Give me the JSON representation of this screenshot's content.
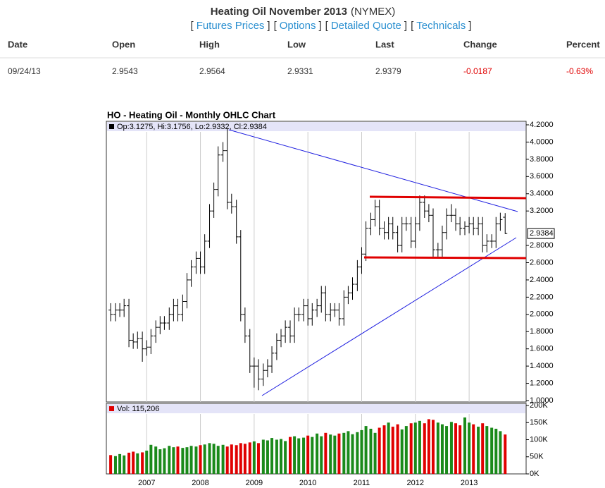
{
  "quote": {
    "title": "Heating Oil November 2013",
    "exchange": "(NYMEX)",
    "bracket_open": "[",
    "bracket_close": "]",
    "links": [
      "Futures Prices",
      "Options",
      "Detailed Quote",
      "Technicals"
    ],
    "headers": [
      "Date",
      "Open",
      "High",
      "Low",
      "Last",
      "Change",
      "Percent"
    ],
    "row": [
      "09/24/13",
      "2.9543",
      "2.9564",
      "2.9331",
      "2.9379",
      "-0.0187",
      "-0.63%"
    ]
  },
  "chart_data": {
    "type": "ohlc",
    "title": "HO - Heating Oil - Monthly OHLC Chart",
    "legend_text": "Op:3.1275, Hi:3.1756, Lo:2.9332, Cl:2.9384",
    "last_label": "2.9384",
    "color": "#000000",
    "x": [
      2006.33,
      2006.42,
      2006.5,
      2006.58,
      2006.67,
      2006.75,
      2006.83,
      2006.92,
      2007,
      2007.08,
      2007.17,
      2007.25,
      2007.33,
      2007.42,
      2007.5,
      2007.58,
      2007.67,
      2007.75,
      2007.83,
      2007.92,
      2008,
      2008.08,
      2008.17,
      2008.25,
      2008.33,
      2008.42,
      2008.5,
      2008.58,
      2008.67,
      2008.75,
      2008.83,
      2008.92,
      2009,
      2009.08,
      2009.17,
      2009.25,
      2009.33,
      2009.42,
      2009.5,
      2009.58,
      2009.67,
      2009.75,
      2009.83,
      2009.92,
      2010,
      2010.08,
      2010.17,
      2010.25,
      2010.33,
      2010.42,
      2010.5,
      2010.58,
      2010.67,
      2010.75,
      2010.83,
      2010.92,
      2011,
      2011.08,
      2011.17,
      2011.25,
      2011.33,
      2011.42,
      2011.5,
      2011.58,
      2011.67,
      2011.75,
      2011.83,
      2011.92,
      2012,
      2012.08,
      2012.17,
      2012.25,
      2012.33,
      2012.42,
      2012.5,
      2012.58,
      2012.67,
      2012.75,
      2012.83,
      2012.92,
      2013,
      2013.08,
      2013.17,
      2013.25,
      2013.33,
      2013.42,
      2013.5,
      2013.58,
      2013.67
    ],
    "open": [
      2.05,
      2.0,
      2.05,
      2.05,
      2.1,
      1.7,
      1.68,
      1.72,
      1.6,
      1.62,
      1.75,
      1.85,
      1.9,
      1.9,
      2.0,
      2.1,
      2.0,
      2.15,
      2.4,
      2.55,
      2.65,
      2.55,
      2.85,
      3.2,
      3.45,
      3.85,
      3.9,
      3.3,
      3.25,
      2.9,
      2.0,
      1.75,
      1.4,
      1.4,
      1.25,
      1.35,
      1.4,
      1.55,
      1.7,
      1.75,
      1.85,
      1.75,
      2.0,
      2.0,
      2.1,
      1.95,
      2.05,
      2.1,
      2.25,
      2.0,
      2.05,
      2.05,
      1.95,
      2.2,
      2.25,
      2.35,
      2.55,
      2.7,
      3.0,
      3.1,
      3.25,
      3.0,
      2.95,
      3.05,
      2.95,
      2.8,
      3.05,
      3.05,
      2.85,
      3.05,
      3.3,
      3.2,
      3.15,
      2.75,
      2.75,
      2.95,
      3.15,
      3.15,
      3.05,
      3.0,
      3.02,
      3.05,
      3.0,
      3.05,
      2.8,
      2.85,
      2.85,
      3.05,
      3.1275
    ],
    "high": [
      2.13,
      2.13,
      2.13,
      2.18,
      2.18,
      1.78,
      1.8,
      1.8,
      1.7,
      1.83,
      1.93,
      1.98,
      1.98,
      2.08,
      2.18,
      2.18,
      2.23,
      2.48,
      2.63,
      2.73,
      2.73,
      2.93,
      3.28,
      3.53,
      3.95,
      4.0,
      4.16,
      3.4,
      3.33,
      2.98,
      2.08,
      1.83,
      1.5,
      1.48,
      1.43,
      1.48,
      1.63,
      1.78,
      1.83,
      1.93,
      1.93,
      2.08,
      2.08,
      2.18,
      2.18,
      2.13,
      2.18,
      2.33,
      2.33,
      2.13,
      2.13,
      2.13,
      2.28,
      2.33,
      2.43,
      2.63,
      2.78,
      3.08,
      3.18,
      3.33,
      3.33,
      3.08,
      3.13,
      3.13,
      3.03,
      3.13,
      3.13,
      3.13,
      3.13,
      3.38,
      3.38,
      3.28,
      3.23,
      2.83,
      3.03,
      3.23,
      3.28,
      3.23,
      3.13,
      3.08,
      3.13,
      3.13,
      3.13,
      3.13,
      2.93,
      2.93,
      3.13,
      3.18,
      3.1756
    ],
    "low": [
      1.92,
      1.92,
      1.97,
      1.97,
      1.62,
      1.6,
      1.6,
      1.45,
      1.52,
      1.54,
      1.67,
      1.77,
      1.82,
      1.82,
      1.92,
      1.92,
      1.92,
      2.07,
      2.32,
      2.47,
      2.47,
      2.47,
      2.77,
      3.12,
      3.37,
      3.77,
      3.22,
      3.17,
      2.82,
      1.92,
      1.67,
      1.32,
      1.15,
      1.12,
      1.17,
      1.27,
      1.32,
      1.47,
      1.62,
      1.67,
      1.67,
      1.67,
      1.92,
      1.92,
      1.87,
      1.87,
      1.97,
      2.02,
      1.92,
      1.92,
      1.97,
      1.87,
      1.87,
      2.12,
      2.17,
      2.27,
      2.47,
      2.62,
      2.92,
      3.02,
      2.92,
      2.87,
      2.87,
      2.87,
      2.72,
      2.72,
      2.97,
      2.77,
      2.77,
      2.97,
      3.12,
      3.07,
      2.67,
      2.67,
      2.67,
      2.87,
      3.07,
      2.97,
      2.92,
      2.92,
      2.94,
      2.92,
      2.92,
      2.72,
      2.72,
      2.77,
      2.77,
      2.97,
      2.9332
    ],
    "close": [
      2.0,
      2.05,
      2.05,
      2.1,
      1.7,
      1.68,
      1.72,
      1.6,
      1.62,
      1.75,
      1.85,
      1.9,
      1.9,
      2.0,
      2.1,
      2.0,
      2.15,
      2.4,
      2.55,
      2.65,
      2.55,
      2.85,
      3.2,
      3.45,
      3.85,
      3.9,
      3.3,
      3.25,
      2.9,
      2.0,
      1.75,
      1.4,
      1.4,
      1.25,
      1.35,
      1.4,
      1.55,
      1.7,
      1.75,
      1.85,
      1.75,
      2.0,
      2.0,
      2.1,
      1.95,
      2.05,
      2.1,
      2.25,
      2.0,
      2.05,
      2.05,
      1.95,
      2.2,
      2.25,
      2.35,
      2.55,
      2.7,
      3.0,
      3.1,
      3.25,
      3.0,
      2.95,
      3.05,
      2.95,
      2.8,
      3.05,
      3.05,
      2.85,
      3.05,
      3.3,
      3.2,
      3.15,
      2.75,
      2.75,
      2.95,
      3.15,
      3.15,
      3.05,
      3.0,
      3.02,
      3.05,
      3.0,
      3.05,
      2.8,
      2.85,
      2.85,
      3.05,
      3.1,
      2.9384
    ],
    "xlim": [
      2006.25,
      2014.06
    ],
    "xticks": [
      2007,
      2008,
      2009,
      2010,
      2011,
      2012,
      2013
    ],
    "grid": "x",
    "ylim": [
      1.0,
      4.2
    ],
    "yticks": [
      {
        "value": 4.2,
        "label": "4.2000"
      },
      {
        "value": 4.0,
        "label": "4.0000"
      },
      {
        "value": 3.8,
        "label": "3.8000"
      },
      {
        "value": 3.6,
        "label": "3.6000"
      },
      {
        "value": 3.4,
        "label": "3.4000"
      },
      {
        "value": 3.2,
        "label": "3.2000"
      },
      {
        "value": 2.8,
        "label": "2.8000"
      },
      {
        "value": 2.6,
        "label": "2.6000"
      },
      {
        "value": 2.4,
        "label": "2.4000"
      },
      {
        "value": 2.2,
        "label": "2.2000"
      },
      {
        "value": 2.0,
        "label": "2.0000"
      },
      {
        "value": 1.8,
        "label": "1.8000"
      },
      {
        "value": 1.6,
        "label": "1.6000"
      },
      {
        "value": 1.4,
        "label": "1.4000"
      },
      {
        "value": 1.2,
        "label": "1.2000"
      },
      {
        "value": 1.0,
        "label": "1.0000"
      }
    ],
    "volume": {
      "legend_text": "Vol: 115,206",
      "up_color": "#1a8a1a",
      "down_color": "#e00000",
      "values": [
        55000,
        52000,
        58000,
        54000,
        62000,
        65000,
        60000,
        63000,
        68000,
        85000,
        80000,
        72000,
        75000,
        82000,
        78000,
        80000,
        76000,
        78000,
        82000,
        80000,
        84000,
        86000,
        90000,
        88000,
        82000,
        85000,
        80000,
        86000,
        84000,
        90000,
        88000,
        92000,
        95000,
        90000,
        100000,
        98000,
        105000,
        100000,
        102000,
        96000,
        108000,
        110000,
        104000,
        106000,
        112000,
        108000,
        118000,
        110000,
        120000,
        115000,
        112000,
        118000,
        120000,
        125000,
        116000,
        122000,
        128000,
        140000,
        132000,
        120000,
        135000,
        142000,
        150000,
        138000,
        145000,
        130000,
        140000,
        148000,
        150000,
        155000,
        148000,
        160000,
        158000,
        150000,
        145000,
        140000,
        152000,
        148000,
        142000,
        165000,
        150000,
        145000,
        138000,
        148000,
        140000,
        135000,
        132000,
        125000,
        115206
      ],
      "ylim": [
        0,
        200000
      ],
      "yticks": [
        {
          "value": 200000,
          "label": "200K"
        },
        {
          "value": 150000,
          "label": "150K"
        },
        {
          "value": 100000,
          "label": "100K"
        },
        {
          "value": 50000,
          "label": "50K"
        },
        {
          "value": 0,
          "label": "0K"
        }
      ]
    }
  }
}
